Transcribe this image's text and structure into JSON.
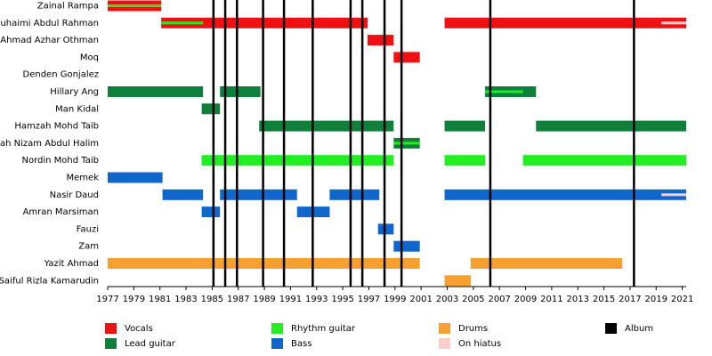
{
  "chart_data": {
    "type": "timeline",
    "xlim": [
      1977,
      2021.3
    ],
    "xticks": [
      1977,
      1979,
      1981,
      1983,
      1985,
      1987,
      1989,
      1991,
      1993,
      1995,
      1997,
      1999,
      2001,
      2003,
      2005,
      2007,
      2009,
      2011,
      2013,
      2015,
      2017,
      2019,
      2021
    ],
    "roles": [
      {
        "name": "Vocals",
        "color": "#ee1111"
      },
      {
        "name": "Lead guitar",
        "color": "#117f3c"
      },
      {
        "name": "Rhythm guitar",
        "color": "#22ee22"
      },
      {
        "name": "Bass",
        "color": "#1166cc"
      },
      {
        "name": "Drums",
        "color": "#f5a030"
      },
      {
        "name": "On hiatus",
        "color": "#ffcccc"
      },
      {
        "name": "Album",
        "color": "#000000"
      }
    ],
    "albums": [
      1985.1,
      1986.0,
      1986.9,
      1988.9,
      1990.5,
      1992.7,
      1995.6,
      1996.5,
      1998.2,
      1999.5,
      2006.3,
      2017.3
    ],
    "members": [
      {
        "name": "Zainal Rampa",
        "periods": [
          {
            "role": "Vocals",
            "start": 1977,
            "end": 1981.1
          },
          {
            "role": "Rhythm guitar",
            "start": 1977,
            "end": 1981.1,
            "thin": true
          }
        ]
      },
      {
        "name": "Suhaimi Abdul Rahman",
        "periods": [
          {
            "role": "Vocals",
            "start": 1981.1,
            "end": 1996.9
          },
          {
            "role": "Rhythm guitar",
            "start": 1981.1,
            "end": 1984.3,
            "thin": true
          },
          {
            "role": "Vocals",
            "start": 2002.8,
            "end": 2021.3
          },
          {
            "role": "On hiatus",
            "start": 2019.4,
            "end": 2021.3,
            "thin": true
          }
        ]
      },
      {
        "name": "Ahmad Azhar Othman",
        "periods": [
          {
            "role": "Vocals",
            "start": 1996.9,
            "end": 1998.9
          }
        ]
      },
      {
        "name": "Moq",
        "periods": [
          {
            "role": "Vocals",
            "start": 1998.9,
            "end": 2000.9
          }
        ]
      },
      {
        "name": "Denden Gonjalez",
        "periods": []
      },
      {
        "name": "Hillary Ang",
        "periods": [
          {
            "role": "Lead guitar",
            "start": 1977,
            "end": 1984.3
          },
          {
            "role": "Lead guitar",
            "start": 1985.6,
            "end": 1988.7
          },
          {
            "role": "Lead guitar",
            "start": 2005.9,
            "end": 2009.8
          },
          {
            "role": "Rhythm guitar",
            "start": 2005.9,
            "end": 2008.8,
            "thin": true
          }
        ]
      },
      {
        "name": "Man Kidal",
        "periods": [
          {
            "role": "Lead guitar",
            "start": 1984.2,
            "end": 1985.6
          }
        ]
      },
      {
        "name": "Hamzah Mohd Taib",
        "periods": [
          {
            "role": "Lead guitar",
            "start": 1988.6,
            "end": 1998.9
          },
          {
            "role": "Lead guitar",
            "start": 2002.8,
            "end": 2005.9
          },
          {
            "role": "Lead guitar",
            "start": 2009.8,
            "end": 2021.3
          }
        ]
      },
      {
        "name": "Shah Nizam Abdul Halim",
        "periods": [
          {
            "role": "Lead guitar",
            "start": 1998.9,
            "end": 2000.9
          },
          {
            "role": "Rhythm guitar",
            "start": 1998.9,
            "end": 2000.9,
            "thin": true
          }
        ]
      },
      {
        "name": "Nordin Mohd Taib",
        "periods": [
          {
            "role": "Rhythm guitar",
            "start": 1984.2,
            "end": 1998.9
          },
          {
            "role": "Rhythm guitar",
            "start": 2002.8,
            "end": 2005.9
          },
          {
            "role": "Rhythm guitar",
            "start": 2008.8,
            "end": 2021.3
          }
        ]
      },
      {
        "name": "Memek",
        "periods": [
          {
            "role": "Bass",
            "start": 1977,
            "end": 1981.2
          }
        ]
      },
      {
        "name": "Nasir Daud",
        "periods": [
          {
            "role": "Bass",
            "start": 1981.2,
            "end": 1984.3
          },
          {
            "role": "Bass",
            "start": 1985.6,
            "end": 1991.5
          },
          {
            "role": "Bass",
            "start": 1994.0,
            "end": 1997.8
          },
          {
            "role": "Bass",
            "start": 2002.8,
            "end": 2021.3
          },
          {
            "role": "On hiatus",
            "start": 2019.4,
            "end": 2021.3,
            "thin": true
          }
        ]
      },
      {
        "name": "Amran Marsiman",
        "periods": [
          {
            "role": "Bass",
            "start": 1984.2,
            "end": 1985.6
          },
          {
            "role": "Bass",
            "start": 1991.5,
            "end": 1994.0
          }
        ]
      },
      {
        "name": "Fauzi",
        "periods": [
          {
            "role": "Bass",
            "start": 1997.7,
            "end": 1998.9
          }
        ]
      },
      {
        "name": "Zam",
        "periods": [
          {
            "role": "Bass",
            "start": 1998.9,
            "end": 2000.9
          }
        ]
      },
      {
        "name": "Yazit Ahmad",
        "periods": [
          {
            "role": "Drums",
            "start": 1977,
            "end": 2000.9
          },
          {
            "role": "Drums",
            "start": 2004.8,
            "end": 2016.4
          }
        ]
      },
      {
        "name": "Saiful Rizla Kamarudin",
        "periods": [
          {
            "role": "Drums",
            "start": 2002.8,
            "end": 2004.8
          }
        ]
      }
    ]
  }
}
